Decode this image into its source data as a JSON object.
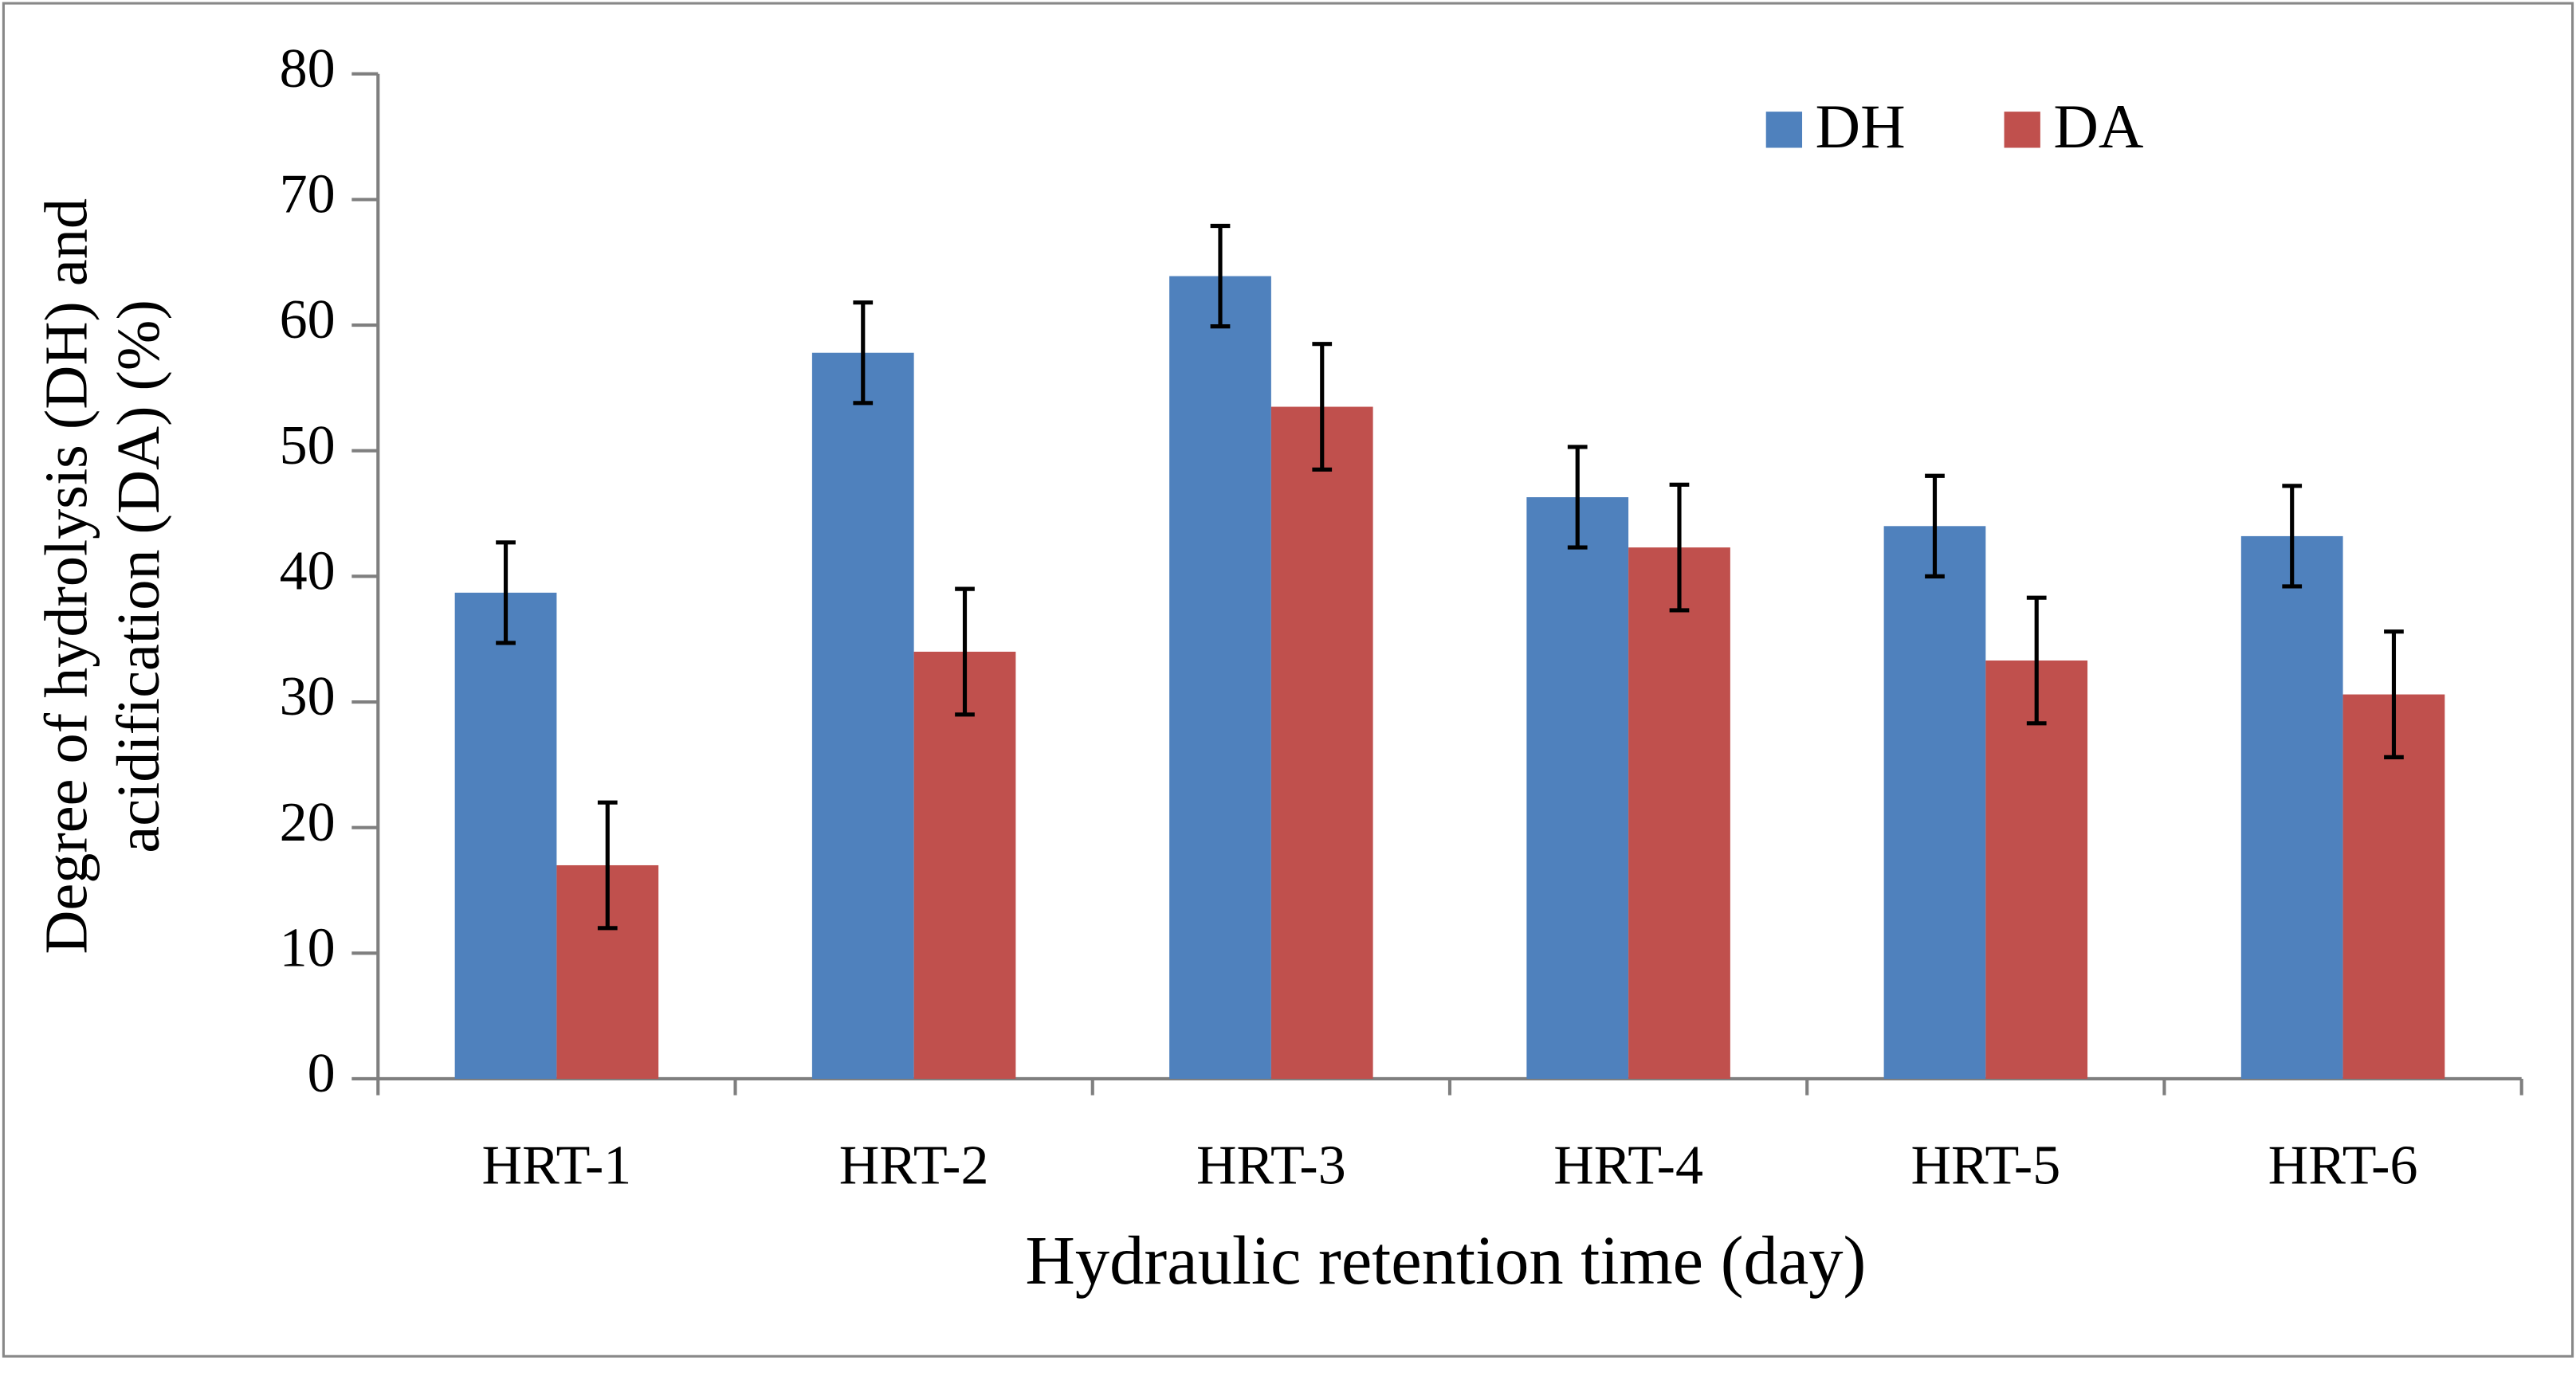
{
  "chart_data": {
    "type": "bar",
    "xlabel": "Hydraulic retention time (day)",
    "ylabel": [
      "Degree of hydrolysis (DH) and",
      "acidification (DA) (%)"
    ],
    "categories": [
      "HRT-1",
      "HRT-2",
      "HRT-3",
      "HRT-4",
      "HRT-5",
      "HRT-6"
    ],
    "series": [
      {
        "name": "DH",
        "color": "#4f81bd",
        "values": [
          38.7,
          57.8,
          63.9,
          46.3,
          44.0,
          43.2
        ],
        "errors": [
          4,
          4,
          4,
          4,
          4,
          4
        ]
      },
      {
        "name": "DA",
        "color": "#c0504d",
        "values": [
          17.0,
          34.0,
          53.5,
          42.3,
          33.3,
          30.6
        ],
        "errors": [
          5,
          5,
          5,
          5,
          5,
          5
        ]
      }
    ],
    "ylim": [
      0,
      80
    ],
    "yticks": [
      0,
      10,
      20,
      30,
      40,
      50,
      60,
      70,
      80
    ],
    "grid": false,
    "legend": "upper right"
  }
}
